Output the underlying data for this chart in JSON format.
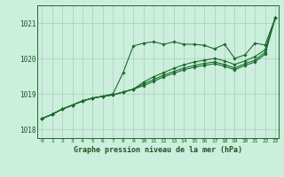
{
  "bg_color": "#cceedd",
  "grid_color": "#aaccbb",
  "line_color": "#1a6b2a",
  "marker_color": "#1a6b2a",
  "xlabel": "Graphe pression niveau de la mer (hPa)",
  "xlabel_color": "#1a5520",
  "ylabel_color": "#1a5520",
  "xlim": [
    -0.5,
    23.3
  ],
  "ylim": [
    1017.75,
    1021.5
  ],
  "yticks": [
    1018,
    1019,
    1020,
    1021
  ],
  "xticks": [
    0,
    1,
    2,
    3,
    4,
    5,
    6,
    7,
    8,
    9,
    10,
    11,
    12,
    13,
    14,
    15,
    16,
    17,
    18,
    19,
    20,
    21,
    22,
    23
  ],
  "series": [
    [
      1018.3,
      1018.42,
      1018.57,
      1018.68,
      1018.8,
      1018.88,
      1018.93,
      1019.0,
      1019.6,
      1020.35,
      1020.43,
      1020.47,
      1020.4,
      1020.47,
      1020.4,
      1020.4,
      1020.37,
      1020.27,
      1020.4,
      1020.0,
      1020.1,
      1020.43,
      1020.38,
      1021.15
    ],
    [
      1018.3,
      1018.42,
      1018.57,
      1018.68,
      1018.8,
      1018.88,
      1018.93,
      1018.97,
      1019.05,
      1019.13,
      1019.33,
      1019.48,
      1019.6,
      1019.72,
      1019.82,
      1019.9,
      1019.95,
      1020.0,
      1019.93,
      1019.83,
      1019.93,
      1020.05,
      1020.25,
      1021.15
    ],
    [
      1018.3,
      1018.42,
      1018.57,
      1018.68,
      1018.8,
      1018.88,
      1018.93,
      1018.97,
      1019.05,
      1019.13,
      1019.28,
      1019.4,
      1019.53,
      1019.63,
      1019.73,
      1019.8,
      1019.86,
      1019.9,
      1019.83,
      1019.73,
      1019.85,
      1019.95,
      1020.18,
      1021.15
    ],
    [
      1018.3,
      1018.42,
      1018.57,
      1018.68,
      1018.8,
      1018.88,
      1018.93,
      1018.97,
      1019.05,
      1019.13,
      1019.23,
      1019.35,
      1019.48,
      1019.58,
      1019.68,
      1019.75,
      1019.8,
      1019.85,
      1019.78,
      1019.68,
      1019.8,
      1019.9,
      1020.12,
      1021.15
    ]
  ]
}
